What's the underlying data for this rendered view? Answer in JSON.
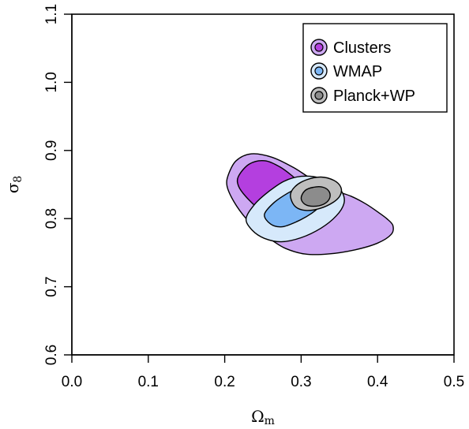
{
  "chart_data": {
    "type": "contour",
    "title": "",
    "xlabel": {
      "base": "Ω",
      "sub": "m"
    },
    "ylabel": {
      "base": "σ",
      "sub": "8"
    },
    "xlim": [
      0.0,
      0.5
    ],
    "ylim": [
      0.6,
      1.1
    ],
    "xticks": [
      "0.0",
      "0.1",
      "0.2",
      "0.3",
      "0.4",
      "0.5"
    ],
    "yticks": [
      "0.6",
      "0.7",
      "0.8",
      "0.9",
      "1.0",
      "1.1"
    ],
    "grid": false,
    "legend_position": "top-right",
    "series": [
      {
        "name": "Clusters",
        "outer_color": "#CDA8F2",
        "inner_color": "#B43FDF",
        "contours": {
          "outer_95": [
            [
              0.205,
              0.865
            ],
            [
              0.215,
              0.885
            ],
            [
              0.235,
              0.895
            ],
            [
              0.262,
              0.89
            ],
            [
              0.29,
              0.875
            ],
            [
              0.318,
              0.855
            ],
            [
              0.342,
              0.842
            ],
            [
              0.365,
              0.833
            ],
            [
              0.384,
              0.822
            ],
            [
              0.4,
              0.81
            ],
            [
              0.412,
              0.8
            ],
            [
              0.42,
              0.79
            ],
            [
              0.418,
              0.777
            ],
            [
              0.4,
              0.764
            ],
            [
              0.37,
              0.754
            ],
            [
              0.335,
              0.748
            ],
            [
              0.305,
              0.748
            ],
            [
              0.28,
              0.756
            ],
            [
              0.262,
              0.768
            ],
            [
              0.245,
              0.782
            ],
            [
              0.228,
              0.8
            ],
            [
              0.212,
              0.825
            ],
            [
              0.203,
              0.848
            ]
          ],
          "inner_68": [
            [
              0.218,
              0.862
            ],
            [
              0.232,
              0.88
            ],
            [
              0.252,
              0.885
            ],
            [
              0.272,
              0.876
            ],
            [
              0.289,
              0.862
            ],
            [
              0.302,
              0.848
            ],
            [
              0.313,
              0.835
            ],
            [
              0.318,
              0.82
            ],
            [
              0.308,
              0.807
            ],
            [
              0.288,
              0.8
            ],
            [
              0.266,
              0.802
            ],
            [
              0.245,
              0.814
            ],
            [
              0.228,
              0.832
            ],
            [
              0.218,
              0.848
            ]
          ]
        }
      },
      {
        "name": "WMAP",
        "outer_color": "#D6E9FB",
        "inner_color": "#7CB6F5",
        "contours": {
          "outer_95": [
            [
              0.228,
              0.8
            ],
            [
              0.236,
              0.783
            ],
            [
              0.252,
              0.771
            ],
            [
              0.274,
              0.766
            ],
            [
              0.3,
              0.772
            ],
            [
              0.326,
              0.786
            ],
            [
              0.346,
              0.804
            ],
            [
              0.356,
              0.822
            ],
            [
              0.354,
              0.838
            ],
            [
              0.343,
              0.85
            ],
            [
              0.324,
              0.86
            ],
            [
              0.3,
              0.862
            ],
            [
              0.278,
              0.855
            ],
            [
              0.258,
              0.84
            ],
            [
              0.24,
              0.822
            ]
          ],
          "inner_68": [
            [
              0.252,
              0.806
            ],
            [
              0.26,
              0.792
            ],
            [
              0.275,
              0.788
            ],
            [
              0.295,
              0.796
            ],
            [
              0.314,
              0.808
            ],
            [
              0.328,
              0.822
            ],
            [
              0.334,
              0.836
            ],
            [
              0.33,
              0.846
            ],
            [
              0.318,
              0.851
            ],
            [
              0.3,
              0.847
            ],
            [
              0.282,
              0.837
            ],
            [
              0.264,
              0.823
            ]
          ]
        }
      },
      {
        "name": "Planck+WP",
        "outer_color": "#BEBEBE",
        "inner_color": "#8C8C8C",
        "contours": {
          "outer_95": [
            [
              0.286,
              0.834
            ],
            [
              0.292,
              0.847
            ],
            [
              0.307,
              0.857
            ],
            [
              0.326,
              0.861
            ],
            [
              0.343,
              0.856
            ],
            [
              0.352,
              0.846
            ],
            [
              0.351,
              0.834
            ],
            [
              0.342,
              0.824
            ],
            [
              0.325,
              0.815
            ],
            [
              0.306,
              0.812
            ],
            [
              0.292,
              0.818
            ]
          ],
          "inner_68": [
            [
              0.3,
              0.83
            ],
            [
              0.305,
              0.841
            ],
            [
              0.316,
              0.846
            ],
            [
              0.329,
              0.846
            ],
            [
              0.337,
              0.839
            ],
            [
              0.337,
              0.829
            ],
            [
              0.329,
              0.821
            ],
            [
              0.316,
              0.818
            ],
            [
              0.305,
              0.821
            ]
          ]
        }
      }
    ]
  }
}
